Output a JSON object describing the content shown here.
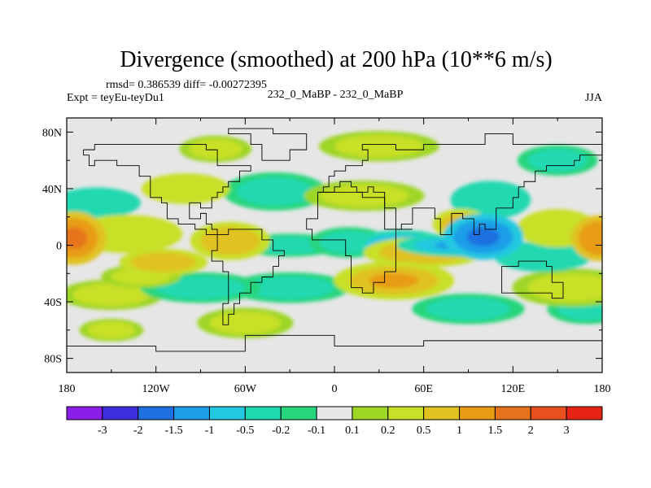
{
  "chart_data": {
    "type": "heatmap",
    "title": "Divergence (smoothed) at 200 hPa (10**6 m/s)",
    "stats_line": "rmsd= 0.386539 diff= -0.00272395",
    "experiment": "Expt = teyEu-teyDu1",
    "center_label": "232_0_MaBP - 232_0_MaBP",
    "season": "JJA",
    "x_axis": {
      "range": [
        -180,
        180
      ],
      "ticks": [
        -180,
        -120,
        -60,
        0,
        60,
        120,
        180
      ],
      "tick_labels": [
        "180",
        "120W",
        "60W",
        "0",
        "60E",
        "120E",
        "180"
      ]
    },
    "y_axis": {
      "range": [
        -90,
        90
      ],
      "ticks": [
        80,
        40,
        0,
        -40,
        -80
      ],
      "tick_labels": [
        "80N",
        "40N",
        "0",
        "40S",
        "80S"
      ]
    },
    "colorbar": {
      "colors": [
        "#8a1de6",
        "#3c2fe0",
        "#1f6fe0",
        "#1f9ee8",
        "#22c8e0",
        "#20d8b0",
        "#26d67c",
        "#e6e6e6",
        "#9ed626",
        "#c8e028",
        "#e0c220",
        "#e89c14",
        "#e6741e",
        "#e8501e",
        "#e62314"
      ],
      "labels": [
        "-3",
        "-2",
        "-1.5",
        "-1",
        "-0.5",
        "-0.2",
        "-0.1",
        "0.1",
        "0.2",
        "0.5",
        "1",
        "1.5",
        "2",
        "3"
      ]
    },
    "features": [
      {
        "lon": -175,
        "lat": 5,
        "w": 16,
        "h": 14,
        "v": 1.8
      },
      {
        "lon": 178,
        "lat": 5,
        "w": 14,
        "h": 12,
        "v": 1.5
      },
      {
        "lon": -140,
        "lat": 8,
        "w": 28,
        "h": 10,
        "v": 0.7
      },
      {
        "lon": -115,
        "lat": -12,
        "w": 22,
        "h": 7,
        "v": 0.8
      },
      {
        "lon": -70,
        "lat": 3,
        "w": 20,
        "h": 10,
        "v": 1.0
      },
      {
        "lon": -30,
        "lat": 0,
        "w": 26,
        "h": 6,
        "v": -0.4
      },
      {
        "lon": 10,
        "lat": 2,
        "w": 20,
        "h": 8,
        "v": -0.4
      },
      {
        "lon": 45,
        "lat": 0,
        "w": 24,
        "h": 8,
        "v": -0.8
      },
      {
        "lon": 85,
        "lat": 0,
        "w": 32,
        "h": 6,
        "v": -1.3
      },
      {
        "lon": 100,
        "lat": 6,
        "w": 20,
        "h": 12,
        "v": -1.8
      },
      {
        "lon": 60,
        "lat": -5,
        "w": 30,
        "h": 8,
        "v": 1.0
      },
      {
        "lon": 40,
        "lat": -25,
        "w": 30,
        "h": 10,
        "v": 1.2
      },
      {
        "lon": 85,
        "lat": 15,
        "w": 14,
        "h": 8,
        "v": 1.4
      },
      {
        "lon": 150,
        "lat": 12,
        "w": 20,
        "h": 10,
        "v": 0.7
      },
      {
        "lon": 140,
        "lat": -8,
        "w": 24,
        "h": 8,
        "v": -0.6
      },
      {
        "lon": -160,
        "lat": 30,
        "w": 22,
        "h": 8,
        "v": -0.6
      },
      {
        "lon": -100,
        "lat": 40,
        "w": 22,
        "h": 8,
        "v": 0.6
      },
      {
        "lon": -40,
        "lat": 38,
        "w": 26,
        "h": 10,
        "v": -0.5
      },
      {
        "lon": 20,
        "lat": 35,
        "w": 30,
        "h": 8,
        "v": 0.5
      },
      {
        "lon": 105,
        "lat": 32,
        "w": 20,
        "h": 10,
        "v": -0.6
      },
      {
        "lon": 160,
        "lat": -30,
        "w": 30,
        "h": 10,
        "v": 0.4
      },
      {
        "lon": -150,
        "lat": -35,
        "w": 26,
        "h": 8,
        "v": 0.3
      },
      {
        "lon": -90,
        "lat": -30,
        "w": 30,
        "h": 8,
        "v": -0.5
      },
      {
        "lon": -30,
        "lat": -30,
        "w": 30,
        "h": 8,
        "v": -0.4
      },
      {
        "lon": -60,
        "lat": -55,
        "w": 24,
        "h": 8,
        "v": 0.3
      },
      {
        "lon": 90,
        "lat": -45,
        "w": 28,
        "h": 8,
        "v": -0.3
      },
      {
        "lon": 170,
        "lat": -45,
        "w": 20,
        "h": 8,
        "v": -0.3
      },
      {
        "lon": -150,
        "lat": -60,
        "w": 16,
        "h": 6,
        "v": 0.3
      },
      {
        "lon": 30,
        "lat": 70,
        "w": 30,
        "h": 8,
        "v": 0.3
      },
      {
        "lon": -80,
        "lat": 68,
        "w": 18,
        "h": 7,
        "v": 0.3
      },
      {
        "lon": 150,
        "lat": 60,
        "w": 20,
        "h": 8,
        "v": -0.3
      },
      {
        "lon": -130,
        "lat": -22,
        "w": 20,
        "h": 6,
        "v": 0.5
      }
    ],
    "continent_outlines": [
      [
        [
          -170,
          66
        ],
        [
          -160,
          70
        ],
        [
          -130,
          70
        ],
        [
          -100,
          72
        ],
        [
          -85,
          68
        ],
        [
          -80,
          62
        ],
        [
          -78,
          55
        ],
        [
          -65,
          58
        ],
        [
          -55,
          52
        ],
        [
          -65,
          45
        ],
        [
          -70,
          42
        ],
        [
          -76,
          38
        ],
        [
          -80,
          32
        ],
        [
          -81,
          25
        ],
        [
          -90,
          30
        ],
        [
          -97,
          26
        ],
        [
          -97,
          20
        ],
        [
          -90,
          21
        ],
        [
          -87,
          16
        ],
        [
          -83,
          10
        ],
        [
          -78,
          8
        ],
        [
          -85,
          12
        ],
        [
          -92,
          15
        ],
        [
          -105,
          20
        ],
        [
          -112,
          30
        ],
        [
          -118,
          34
        ],
        [
          -124,
          42
        ],
        [
          -124,
          48
        ],
        [
          -132,
          55
        ],
        [
          -145,
          60
        ],
        [
          -160,
          58
        ],
        [
          -166,
          62
        ],
        [
          -170,
          66
        ]
      ],
      [
        [
          -78,
          8
        ],
        [
          -72,
          12
        ],
        [
          -62,
          10
        ],
        [
          -50,
          2
        ],
        [
          -40,
          -3
        ],
        [
          -35,
          -7
        ],
        [
          -38,
          -15
        ],
        [
          -40,
          -22
        ],
        [
          -48,
          -28
        ],
        [
          -58,
          -35
        ],
        [
          -65,
          -42
        ],
        [
          -68,
          -50
        ],
        [
          -70,
          -55
        ],
        [
          -75,
          -50
        ],
        [
          -74,
          -40
        ],
        [
          -72,
          -30
        ],
        [
          -70,
          -18
        ],
        [
          -76,
          -12
        ],
        [
          -81,
          -5
        ],
        [
          -80,
          0
        ],
        [
          -78,
          8
        ]
      ],
      [
        [
          -10,
          36
        ],
        [
          -5,
          36
        ],
        [
          10,
          37
        ],
        [
          20,
          32
        ],
        [
          32,
          31
        ],
        [
          35,
          28
        ],
        [
          43,
          12
        ],
        [
          51,
          12
        ],
        [
          42,
          0
        ],
        [
          40,
          -10
        ],
        [
          40,
          -18
        ],
        [
          35,
          -25
        ],
        [
          28,
          -34
        ],
        [
          20,
          -35
        ],
        [
          17,
          -29
        ],
        [
          12,
          -18
        ],
        [
          13,
          -8
        ],
        [
          9,
          -2
        ],
        [
          9,
          4
        ],
        [
          0,
          5
        ],
        [
          -8,
          4
        ],
        [
          -15,
          10
        ],
        [
          -17,
          20
        ],
        [
          -10,
          30
        ],
        [
          -10,
          36
        ]
      ],
      [
        [
          -10,
          36
        ],
        [
          -9,
          43
        ],
        [
          -2,
          44
        ],
        [
          -5,
          48
        ],
        [
          0,
          51
        ],
        [
          5,
          54
        ],
        [
          8,
          57
        ],
        [
          12,
          56
        ],
        [
          18,
          55
        ],
        [
          20,
          60
        ],
        [
          24,
          66
        ],
        [
          20,
          70
        ],
        [
          30,
          71
        ],
        [
          40,
          68
        ],
        [
          60,
          70
        ],
        [
          80,
          73
        ],
        [
          100,
          77
        ],
        [
          120,
          73
        ],
        [
          140,
          72
        ],
        [
          160,
          70
        ],
        [
          180,
          68
        ],
        [
          180,
          62
        ],
        [
          165,
          60
        ],
        [
          160,
          55
        ],
        [
          142,
          53
        ],
        [
          135,
          44
        ],
        [
          128,
          40
        ],
        [
          122,
          32
        ],
        [
          120,
          25
        ],
        [
          110,
          20
        ],
        [
          108,
          12
        ],
        [
          104,
          10
        ],
        [
          100,
          14
        ],
        [
          98,
          8
        ],
        [
          92,
          20
        ],
        [
          88,
          22
        ],
        [
          80,
          15
        ],
        [
          77,
          8
        ],
        [
          72,
          20
        ],
        [
          66,
          25
        ],
        [
          57,
          25
        ],
        [
          52,
          15
        ],
        [
          45,
          13
        ],
        [
          35,
          28
        ],
        [
          35,
          36
        ],
        [
          27,
          38
        ],
        [
          26,
          41
        ],
        [
          22,
          38
        ],
        [
          15,
          40
        ],
        [
          12,
          44
        ],
        [
          5,
          43
        ],
        [
          0,
          39
        ],
        [
          -10,
          36
        ]
      ],
      [
        [
          114,
          -22
        ],
        [
          114,
          -34
        ],
        [
          118,
          -35
        ],
        [
          125,
          -33
        ],
        [
          130,
          -32
        ],
        [
          138,
          -35
        ],
        [
          145,
          -38
        ],
        [
          150,
          -37
        ],
        [
          153,
          -28
        ],
        [
          145,
          -15
        ],
        [
          142,
          -11
        ],
        [
          136,
          -12
        ],
        [
          130,
          -12
        ],
        [
          125,
          -15
        ],
        [
          114,
          -22
        ]
      ],
      [
        [
          -50,
          60
        ],
        [
          -43,
          60
        ],
        [
          -30,
          68
        ],
        [
          -20,
          72
        ],
        [
          -20,
          80
        ],
        [
          -40,
          83
        ],
        [
          -60,
          82
        ],
        [
          -70,
          78
        ],
        [
          -55,
          70
        ],
        [
          -50,
          60
        ]
      ],
      [
        [
          -180,
          -70
        ],
        [
          -120,
          -74
        ],
        [
          -60,
          -64
        ],
        [
          0,
          -70
        ],
        [
          60,
          -67
        ],
        [
          120,
          -66
        ],
        [
          180,
          -72
        ]
      ]
    ]
  }
}
